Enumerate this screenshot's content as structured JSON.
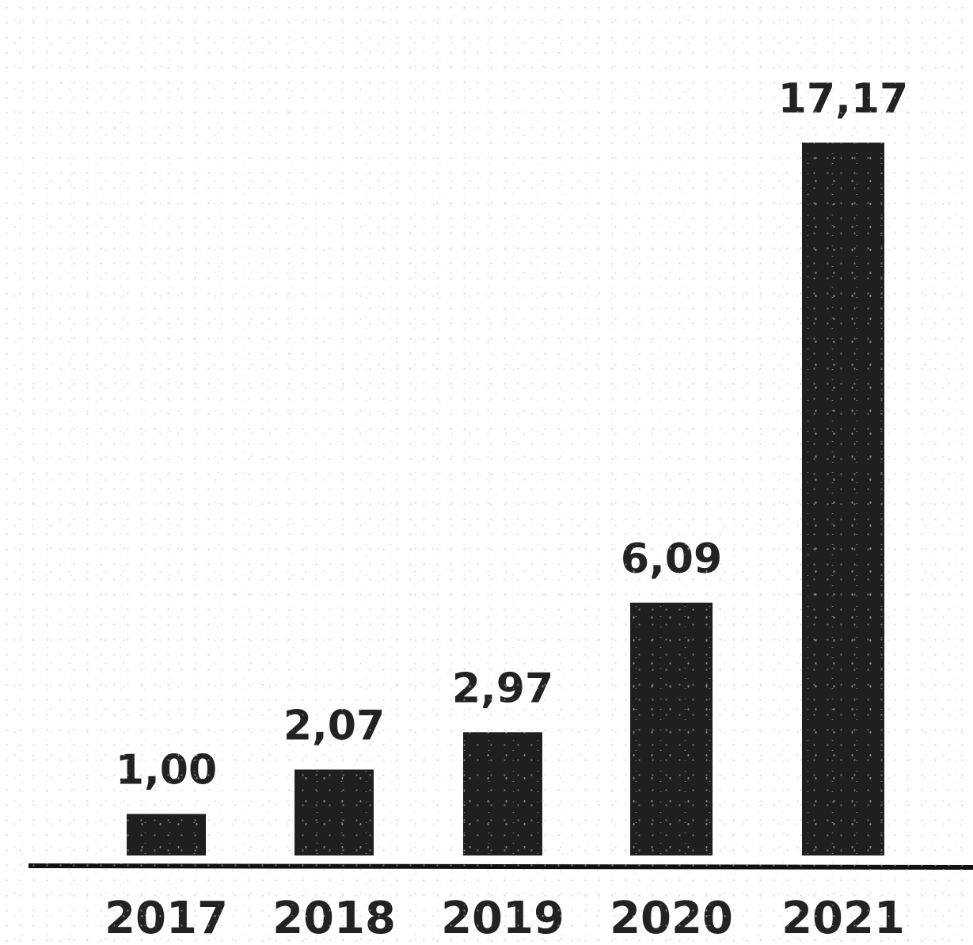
{
  "chart_data": {
    "type": "bar",
    "title": "",
    "xlabel": "",
    "ylabel": "",
    "categories": [
      "2017",
      "2018",
      "2019",
      "2020",
      "2021"
    ],
    "values": [
      1.0,
      2.07,
      2.97,
      6.09,
      17.17
    ],
    "value_labels": [
      "1,00",
      "2,07",
      "2,97",
      "6,09",
      "17,17"
    ],
    "ylim": [
      0,
      17.17
    ],
    "grid": false,
    "legend": "none",
    "bar_color": "#1f1f1f",
    "axis_color": "#111111"
  }
}
